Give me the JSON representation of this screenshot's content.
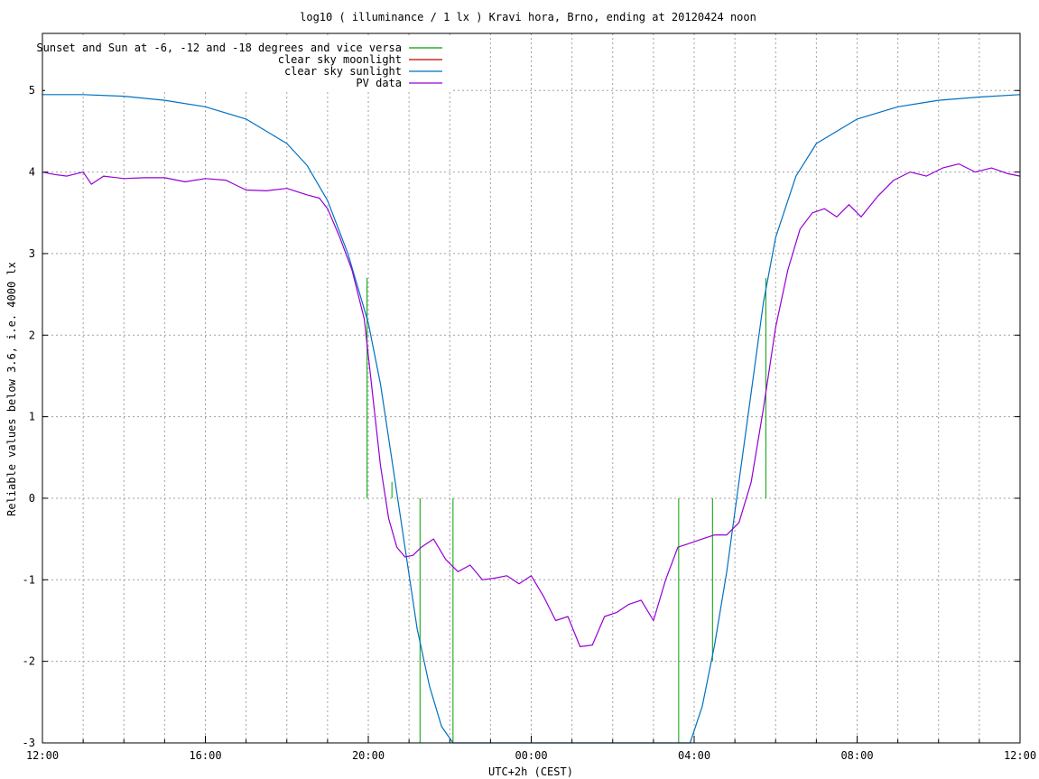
{
  "chart_data": {
    "type": "line",
    "title": "log10 ( illuminance / 1 lx ) Kravi hora, Brno, ending at 20120424 noon",
    "xlabel": "UTC+2h (CEST)",
    "ylabel": "Reliable values below 3.6, i.e. 4000 lx",
    "xlim": [
      0,
      24
    ],
    "ylim": [
      -3,
      5.7
    ],
    "x_tick_labels": [
      {
        "x": 0,
        "label": "12:00"
      },
      {
        "x": 4,
        "label": "16:00"
      },
      {
        "x": 8,
        "label": "20:00"
      },
      {
        "x": 12,
        "label": "00:00"
      },
      {
        "x": 16,
        "label": "04:00"
      },
      {
        "x": 20,
        "label": "08:00"
      },
      {
        "x": 24,
        "label": "12:00"
      }
    ],
    "x_grid_hours": [
      1,
      2,
      3,
      4,
      5,
      6,
      7,
      8,
      9,
      10,
      11,
      12,
      13,
      14,
      15,
      16,
      17,
      18,
      19,
      20,
      21,
      22,
      23
    ],
    "y_ticks": [
      -3,
      -2,
      -1,
      0,
      1,
      2,
      3,
      4,
      5
    ],
    "grid": true,
    "legend_position": "top-left",
    "colors": {
      "sun_markers": "#00a000",
      "moonlight": "#c00000",
      "sunlight": "#0070c0",
      "pv": "#9400d3",
      "grid": "#a0a0a0"
    },
    "series": [
      {
        "name": "Sunset and Sun at -6, -12 and -18 degrees and vice versa",
        "kind": "markers",
        "x": [
          7.97,
          8.58,
          9.27,
          10.08,
          15.62,
          16.45,
          17.76
        ],
        "y_top": [
          2.7,
          0.2,
          0.0,
          0.0,
          0.0,
          0.0,
          2.7
        ],
        "y_bottom": [
          0.0,
          0.0,
          -3.0,
          -3.0,
          -3.0,
          -2.0,
          0.0
        ]
      },
      {
        "name": "clear sky moonlight",
        "kind": "line",
        "x": [],
        "y": []
      },
      {
        "name": "clear sky sunlight",
        "kind": "line",
        "x": [
          0,
          1,
          2,
          3,
          4,
          5,
          6,
          6.5,
          7,
          7.5,
          8,
          8.3,
          8.6,
          8.9,
          9.2,
          9.5,
          9.8,
          10.08,
          15.9,
          16.2,
          16.5,
          16.8,
          17.1,
          17.4,
          17.7,
          18,
          18.5,
          19,
          20,
          21,
          22,
          23,
          24
        ],
        "y": [
          4.95,
          4.95,
          4.93,
          4.88,
          4.8,
          4.65,
          4.35,
          4.08,
          3.65,
          3.0,
          2.15,
          1.4,
          0.4,
          -0.6,
          -1.6,
          -2.3,
          -2.8,
          -3.0,
          -3.0,
          -2.55,
          -1.8,
          -0.9,
          0.2,
          1.3,
          2.4,
          3.2,
          3.95,
          4.35,
          4.65,
          4.8,
          4.88,
          4.92,
          4.95
        ]
      },
      {
        "name": "PV data",
        "kind": "line",
        "x": [
          0,
          0.3,
          0.6,
          1.0,
          1.2,
          1.5,
          2,
          2.5,
          3,
          3.5,
          4,
          4.5,
          5,
          5.5,
          6,
          6.5,
          6.8,
          7,
          7.3,
          7.6,
          7.9,
          8.1,
          8.3,
          8.5,
          8.7,
          8.9,
          9.1,
          9.3,
          9.6,
          9.9,
          10.2,
          10.5,
          10.8,
          11.1,
          11.4,
          11.7,
          12,
          12.3,
          12.6,
          12.9,
          13.2,
          13.5,
          13.8,
          14.1,
          14.4,
          14.7,
          15,
          15.3,
          15.6,
          15.9,
          16.2,
          16.5,
          16.8,
          17.1,
          17.4,
          17.7,
          18,
          18.3,
          18.6,
          18.9,
          19.2,
          19.5,
          19.8,
          20.1,
          20.5,
          20.9,
          21.3,
          21.7,
          22.1,
          22.5,
          22.9,
          23.3,
          23.7,
          24
        ],
        "y": [
          4.0,
          3.97,
          3.95,
          4.0,
          3.85,
          3.95,
          3.92,
          3.93,
          3.93,
          3.88,
          3.92,
          3.9,
          3.78,
          3.77,
          3.8,
          3.72,
          3.68,
          3.55,
          3.2,
          2.8,
          2.2,
          1.3,
          0.4,
          -0.25,
          -0.6,
          -0.72,
          -0.7,
          -0.6,
          -0.5,
          -0.75,
          -0.9,
          -0.82,
          -1.0,
          -0.98,
          -0.95,
          -1.05,
          -0.95,
          -1.2,
          -1.5,
          -1.45,
          -1.82,
          -1.8,
          -1.45,
          -1.4,
          -1.3,
          -1.25,
          -1.5,
          -1.0,
          -0.6,
          -0.55,
          -0.5,
          -0.45,
          -0.45,
          -0.3,
          0.2,
          1.1,
          2.1,
          2.8,
          3.3,
          3.5,
          3.55,
          3.45,
          3.6,
          3.45,
          3.7,
          3.9,
          4.0,
          3.95,
          4.05,
          4.1,
          4.0,
          4.05,
          3.98,
          3.95
        ]
      }
    ]
  }
}
